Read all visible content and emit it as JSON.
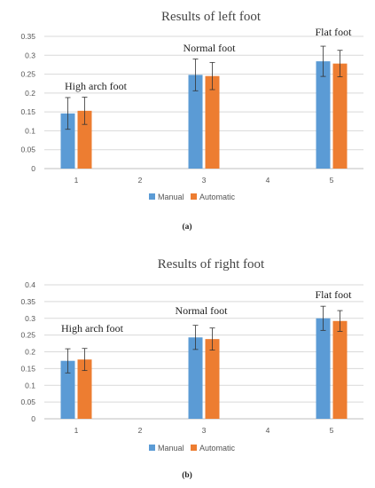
{
  "colors": {
    "manual": "#5b9bd5",
    "automatic": "#ed7d31",
    "grid": "#d9d9d9",
    "axis": "#bfbfbf"
  },
  "chart_data": [
    {
      "type": "bar",
      "title": "Results of left foot",
      "caption": "(a)",
      "categories": [
        "1",
        "2",
        "3",
        "4",
        "5"
      ],
      "ylim": [
        0,
        0.35
      ],
      "yticks": [
        "0",
        "0.05",
        "0.1",
        "0.15",
        "0.2",
        "0.25",
        "0.3",
        "0.35"
      ],
      "grid": true,
      "legend_position": "bottom",
      "series": [
        {
          "name": "Manual",
          "values": [
            0.146,
            null,
            0.248,
            null,
            0.284
          ],
          "errors": [
            0.042,
            null,
            0.042,
            null,
            0.04
          ]
        },
        {
          "name": "Automatic",
          "values": [
            0.153,
            null,
            0.245,
            null,
            0.278
          ],
          "errors": [
            0.036,
            null,
            0.036,
            null,
            0.035
          ]
        }
      ],
      "annotations": [
        {
          "text": "High arch foot",
          "category": "1"
        },
        {
          "text": "Normal foot",
          "category": "3"
        },
        {
          "text": "Flat foot",
          "category": "5"
        }
      ]
    },
    {
      "type": "bar",
      "title": "Results of right foot",
      "caption": "(b)",
      "categories": [
        "1",
        "2",
        "3",
        "4",
        "5"
      ],
      "ylim": [
        0,
        0.4
      ],
      "yticks": [
        "0",
        "0.05",
        "0.1",
        "0.15",
        "0.2",
        "0.25",
        "0.3",
        "0.35",
        "0.4"
      ],
      "grid": true,
      "legend_position": "bottom",
      "series": [
        {
          "name": "Manual",
          "values": [
            0.173,
            null,
            0.243,
            null,
            0.3
          ],
          "errors": [
            0.036,
            null,
            0.036,
            null,
            0.036
          ]
        },
        {
          "name": "Automatic",
          "values": [
            0.177,
            null,
            0.238,
            null,
            0.292
          ],
          "errors": [
            0.033,
            null,
            0.033,
            null,
            0.031
          ]
        }
      ],
      "annotations": [
        {
          "text": "High arch foot",
          "category": "1"
        },
        {
          "text": "Normal foot",
          "category": "3"
        },
        {
          "text": "Flat foot",
          "category": "5"
        }
      ]
    }
  ]
}
